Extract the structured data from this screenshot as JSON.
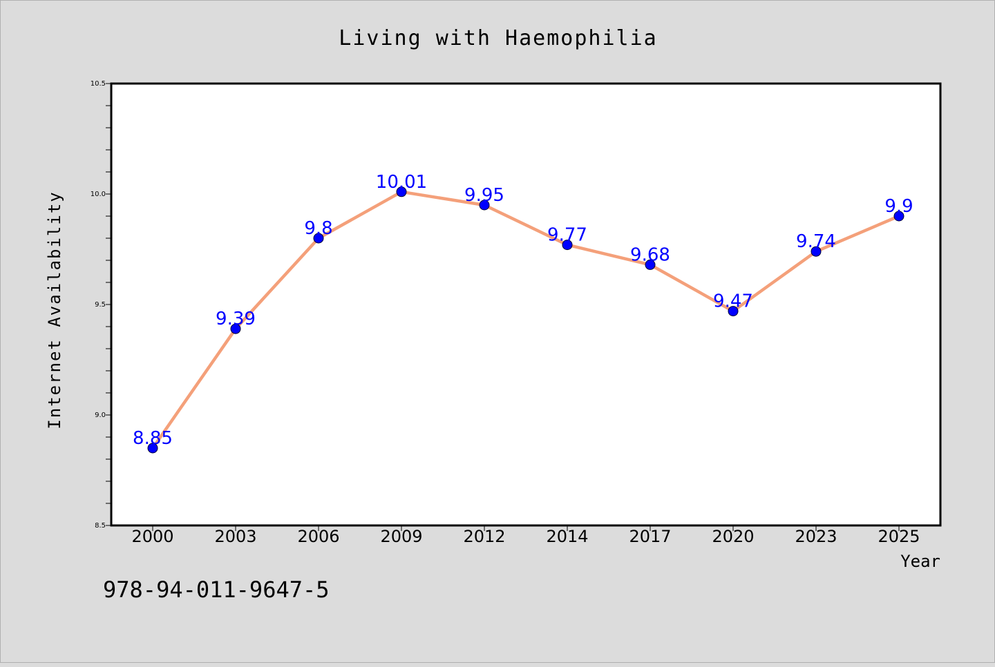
{
  "chart_data": {
    "type": "line",
    "title": "Living with Haemophilia",
    "xlabel": "Year",
    "ylabel": "Internet Availability",
    "categories": [
      "2000",
      "2003",
      "2006",
      "2009",
      "2012",
      "2014",
      "2017",
      "2020",
      "2023",
      "2025"
    ],
    "series": [
      {
        "values": [
          8.85,
          9.39,
          9.8,
          10.01,
          9.95,
          9.77,
          9.68,
          9.47,
          9.74,
          9.9
        ],
        "data_labels": [
          "8.85",
          "9.39",
          "9.8",
          "10.01",
          "9.95",
          "9.77",
          "9.68",
          "9.47",
          "9.74",
          "9.9"
        ],
        "line_color": "#f4a07a",
        "marker_color": "#0000ff"
      }
    ],
    "ylim": [
      8.5,
      10.5
    ],
    "yticks": [
      "8.5",
      "9.0",
      "9.5",
      "10.0",
      "10.5"
    ],
    "grid": false,
    "legend": "none"
  },
  "footer_text": "978-94-011-9647-5",
  "colors": {
    "background": "#dcdcdc",
    "plot_background": "#ffffff",
    "axis": "#000000",
    "data_label": "#0000ff"
  }
}
